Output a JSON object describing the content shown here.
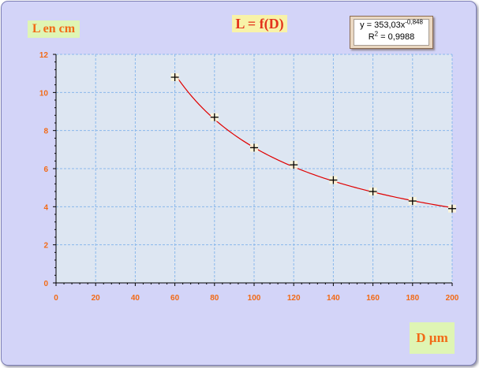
{
  "chart_data": {
    "type": "scatter",
    "title": "L = f(D)",
    "ylabel": "L en  cm",
    "xlabel": "D µm",
    "xlim": [
      0,
      200
    ],
    "ylim": [
      0,
      12
    ],
    "x_ticks": [
      "0",
      "20",
      "40",
      "60",
      "80",
      "100",
      "120",
      "140",
      "160",
      "180",
      "200"
    ],
    "y_ticks": [
      "0",
      "2",
      "4",
      "6",
      "8",
      "10",
      "12"
    ],
    "grid": true,
    "points": [
      {
        "x": 60,
        "y": 10.8
      },
      {
        "x": 80,
        "y": 8.7
      },
      {
        "x": 100,
        "y": 7.1
      },
      {
        "x": 120,
        "y": 6.2
      },
      {
        "x": 140,
        "y": 5.4
      },
      {
        "x": 160,
        "y": 4.8
      },
      {
        "x": 180,
        "y": 4.3
      },
      {
        "x": 200,
        "y": 3.9
      }
    ],
    "trendline": {
      "type": "power",
      "coefficient": 353.03,
      "exponent": -0.848,
      "equation_main": "y = 353,03x",
      "equation_exp": "-0,848",
      "r2_label": "R",
      "r2_sup": "2",
      "r2_value": " = 0,9988",
      "color": "#e00000"
    },
    "colors": {
      "plot_background": "#dde6f2",
      "grid": "#8ab8ec",
      "axis_text": "#f26a16",
      "marker": "#000000"
    }
  }
}
